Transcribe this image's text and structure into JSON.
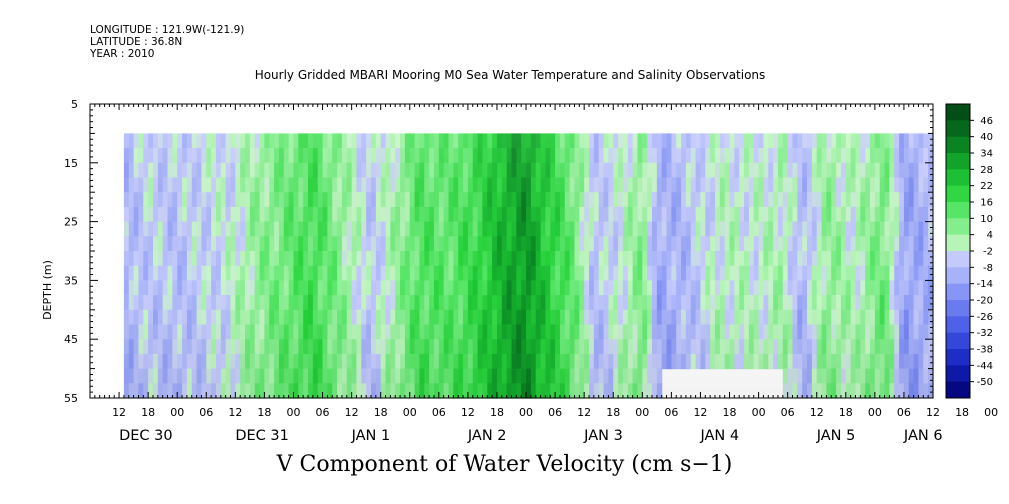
{
  "header": {
    "longitude": "LONGITUDE : 121.9W(-121.9)",
    "latitude": "LATITUDE : 36.8N",
    "year": "YEAR : 2010"
  },
  "chart_data": {
    "type": "heatmap",
    "title": "Hourly Gridded MBARI Mooring M0 Sea Water Temperature and Salinity Observations",
    "xlabel": "V Component of Water Velocity (cm s−1)",
    "ylabel": "DEPTH (m)",
    "x_range_hours": [
      0,
      174
    ],
    "y_ticks": [
      5,
      15,
      25,
      35,
      45,
      55
    ],
    "ylim": [
      5,
      55
    ],
    "hour_tick_labels": [
      "12",
      "18",
      "00",
      "06",
      "12",
      "18",
      "00",
      "06",
      "12",
      "18",
      "00",
      "06",
      "12",
      "18",
      "00",
      "06",
      "12",
      "18",
      "00",
      "06",
      "12",
      "18",
      "00",
      "06",
      "12",
      "18",
      "00",
      "06",
      "12",
      "18",
      "00",
      "06"
    ],
    "day_labels": [
      {
        "label": "DEC 30",
        "hour": 6
      },
      {
        "label": "DEC 31",
        "hour": 30
      },
      {
        "label": "JAN  1",
        "hour": 54
      },
      {
        "label": "JAN  2",
        "hour": 78
      },
      {
        "label": "JAN  3",
        "hour": 102
      },
      {
        "label": "JAN  4",
        "hour": 126
      },
      {
        "label": "JAN  5",
        "hour": 150
      },
      {
        "label": "JAN  6",
        "hour": 168
      }
    ],
    "colorbar_levels": [
      "46",
      "40",
      "34",
      "28",
      "22",
      "16",
      "10",
      "4",
      "-2",
      "-8",
      "-14",
      "-20",
      "-26",
      "-32",
      "-38",
      "-44",
      "-50"
    ],
    "colorbar_min": -50,
    "colorbar_max": 52,
    "data_depth_range": [
      10,
      55
    ],
    "data_hour_range": [
      7,
      174
    ],
    "data_gap": {
      "hours": [
        118,
        143
      ],
      "depth": [
        50,
        55
      ]
    },
    "v_by_hour": [
      {
        "hour": 7,
        "v": -6
      },
      {
        "hour": 12,
        "v": -2
      },
      {
        "hour": 18,
        "v": -4
      },
      {
        "hour": 24,
        "v": -1
      },
      {
        "hour": 28,
        "v": 0
      },
      {
        "hour": 33,
        "v": 6
      },
      {
        "hour": 40,
        "v": 12
      },
      {
        "hour": 46,
        "v": 18
      },
      {
        "hour": 52,
        "v": 8
      },
      {
        "hour": 58,
        "v": -3
      },
      {
        "hour": 62,
        "v": 4
      },
      {
        "hour": 68,
        "v": 16
      },
      {
        "hour": 74,
        "v": 14
      },
      {
        "hour": 80,
        "v": 20
      },
      {
        "hour": 86,
        "v": 30
      },
      {
        "hour": 90,
        "v": 34
      },
      {
        "hour": 94,
        "v": 24
      },
      {
        "hour": 100,
        "v": 12
      },
      {
        "hour": 104,
        "v": -4
      },
      {
        "hour": 110,
        "v": 2
      },
      {
        "hour": 114,
        "v": 10
      },
      {
        "hour": 117,
        "v": -8
      },
      {
        "hour": 122,
        "v": -6
      },
      {
        "hour": 130,
        "v": 3
      },
      {
        "hour": 138,
        "v": 2
      },
      {
        "hour": 143,
        "v": 5
      },
      {
        "hour": 147,
        "v": -6
      },
      {
        "hour": 152,
        "v": 8
      },
      {
        "hour": 158,
        "v": 3
      },
      {
        "hour": 164,
        "v": 12
      },
      {
        "hour": 168,
        "v": -10
      },
      {
        "hour": 174,
        "v": -6
      }
    ]
  }
}
